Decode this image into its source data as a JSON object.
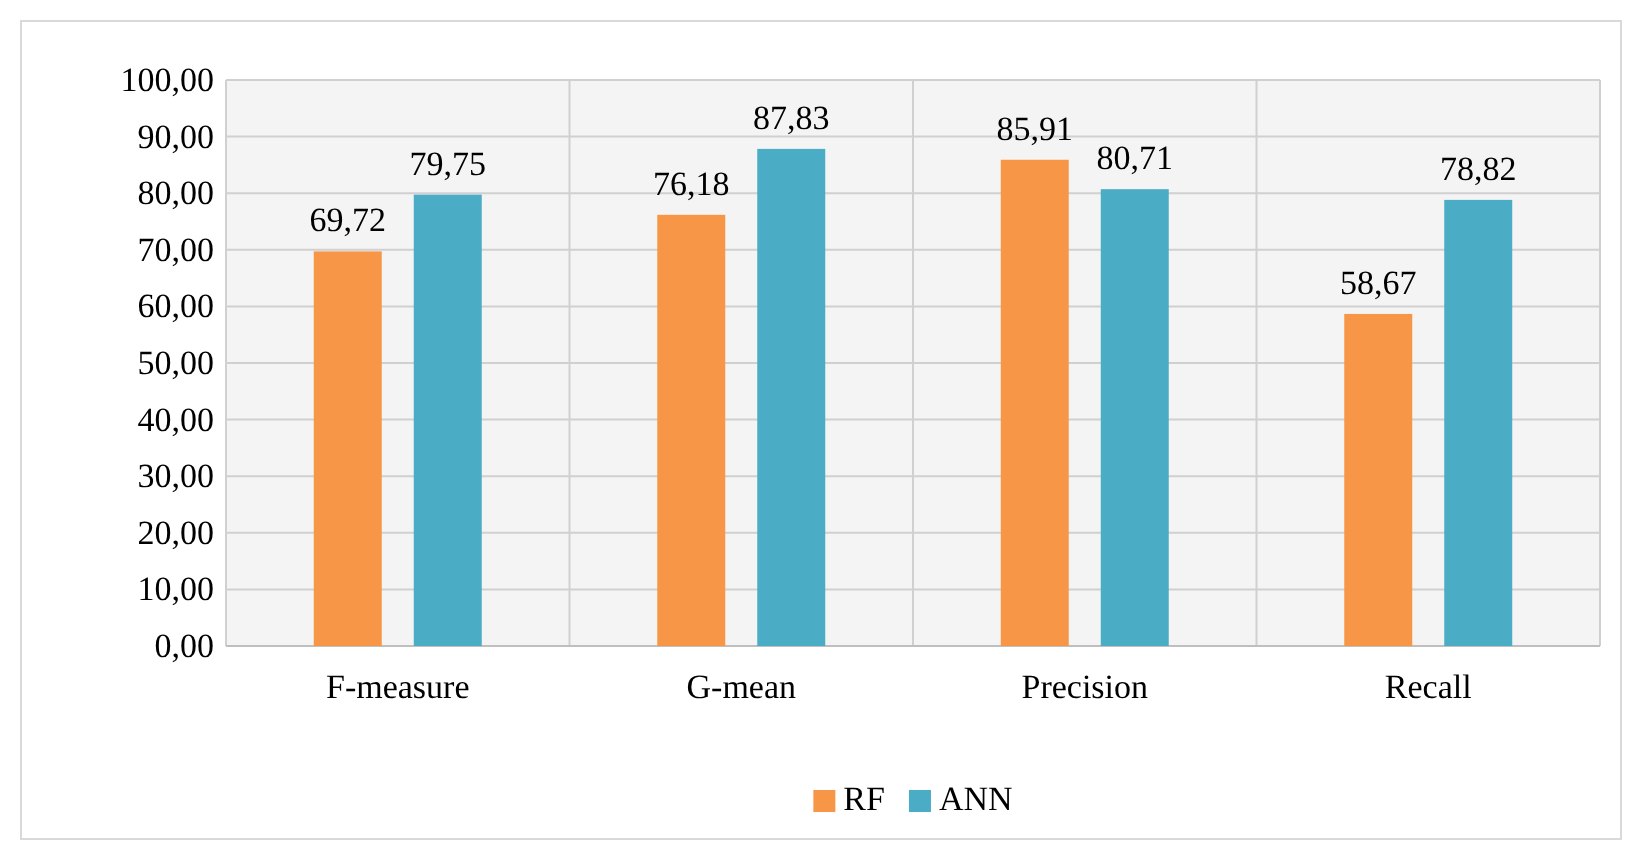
{
  "chart_data": {
    "type": "bar",
    "categories": [
      "F-measure",
      "G-mean",
      "Precision",
      "Recall"
    ],
    "series": [
      {
        "name": "RF",
        "color": "#f79646",
        "values": [
          69.72,
          76.18,
          85.91,
          58.67
        ],
        "value_labels": [
          "69,72",
          "76,18",
          "85,91",
          "58,67"
        ]
      },
      {
        "name": "ANN",
        "color": "#4bacc6",
        "values": [
          79.75,
          87.83,
          80.71,
          78.82
        ],
        "value_labels": [
          "79,75",
          "87,83",
          "80,71",
          "78,82"
        ]
      }
    ],
    "ylim": [
      0,
      100
    ],
    "yticks": [
      {
        "value": 0,
        "label": "0,00"
      },
      {
        "value": 10,
        "label": "10,00"
      },
      {
        "value": 20,
        "label": "20,00"
      },
      {
        "value": 30,
        "label": "30,00"
      },
      {
        "value": 40,
        "label": "40,00"
      },
      {
        "value": 50,
        "label": "50,00"
      },
      {
        "value": 60,
        "label": "60,00"
      },
      {
        "value": 70,
        "label": "70,00"
      },
      {
        "value": 80,
        "label": "80,00"
      },
      {
        "value": 90,
        "label": "90,00"
      },
      {
        "value": 100,
        "label": "100,00"
      }
    ],
    "grid": true,
    "legend": "bottom"
  }
}
